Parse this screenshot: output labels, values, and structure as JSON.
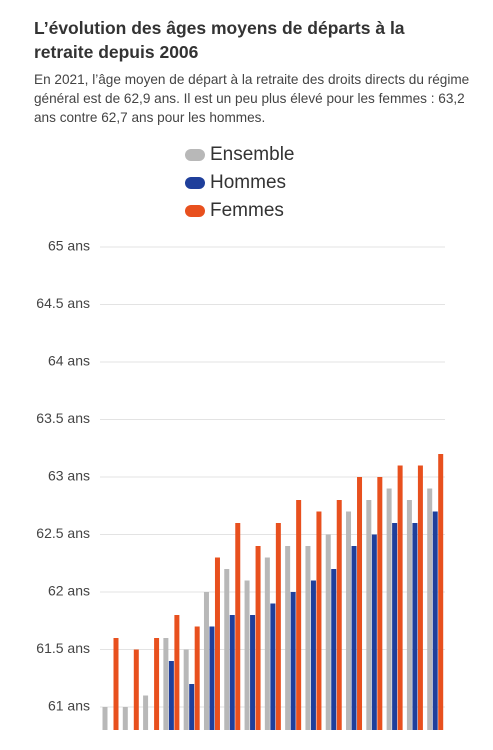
{
  "chart_data": {
    "type": "bar",
    "title": "L’évolution des âges moyens de départs à la retraite depuis 2006",
    "subtitle": "En 2021, l’âge moyen de départ à la retraite des droits directs du régime général est de 62,9 ans. Il est un peu plus élevé pour les femmes : 63,2 ans contre 62,7 ans pour les hommes.",
    "categories": [
      null,
      null,
      null,
      null,
      null,
      null,
      null,
      null,
      null,
      null,
      null,
      null,
      null,
      null,
      null,
      null,
      null
    ],
    "series": [
      {
        "name": "Ensemble",
        "color": "#b8b8b8",
        "values": [
          61.0,
          61.0,
          61.1,
          61.6,
          61.5,
          62.0,
          62.2,
          62.1,
          62.3,
          62.4,
          62.4,
          62.5,
          62.7,
          62.8,
          62.9,
          62.8,
          62.9
        ]
      },
      {
        "name": "Hommes",
        "color": "#1f3f9b",
        "values": [
          null,
          null,
          null,
          61.4,
          61.2,
          61.7,
          61.8,
          61.8,
          61.9,
          62.0,
          62.1,
          62.2,
          62.4,
          62.5,
          62.6,
          62.6,
          62.7
        ]
      },
      {
        "name": "Femmes",
        "color": "#e8501e",
        "values": [
          61.6,
          61.5,
          61.6,
          61.8,
          61.7,
          62.3,
          62.6,
          62.4,
          62.6,
          62.8,
          62.7,
          62.8,
          63.0,
          63.0,
          63.1,
          63.1,
          63.2
        ]
      }
    ],
    "ylim": [
      60.8,
      65
    ],
    "yticks": [
      {
        "value": 61,
        "label": "61 ans"
      },
      {
        "value": 61.5,
        "label": "61.5 ans"
      },
      {
        "value": 62,
        "label": "62 ans"
      },
      {
        "value": 62.5,
        "label": "62.5 ans"
      },
      {
        "value": 63,
        "label": "63 ans"
      },
      {
        "value": 63.5,
        "label": "63.5 ans"
      },
      {
        "value": 64,
        "label": "64 ans"
      },
      {
        "value": 64.5,
        "label": "64.5 ans"
      },
      {
        "value": 65,
        "label": "65 ans"
      }
    ],
    "grid": true,
    "legend": "top"
  }
}
